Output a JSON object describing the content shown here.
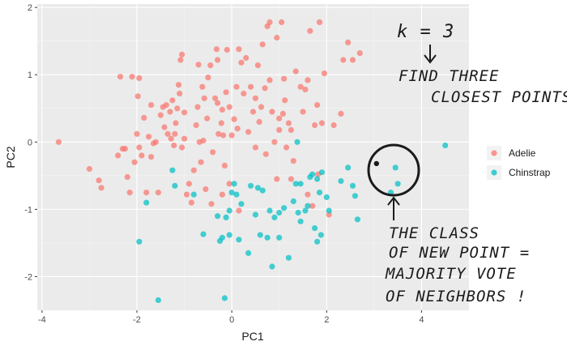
{
  "colors": {
    "panel": "#EBEBEB",
    "grid_major": "#FFFFFF",
    "grid_minor": "#F5F5F5",
    "adelie": "#F8766D",
    "chinstrap": "#00BFC4",
    "ink": "#1B1B1B"
  },
  "chart_data": {
    "type": "scatter",
    "xlabel": "PC1",
    "ylabel": "PC2",
    "xlim": [
      -4.1,
      5.0
    ],
    "ylim": [
      -2.5,
      2.05
    ],
    "x_ticks": [
      -4,
      -2,
      0,
      2,
      4
    ],
    "y_ticks": [
      -2,
      -1,
      0,
      1,
      2
    ],
    "x_tick_labels": [
      "-4",
      "-2",
      "0",
      "2",
      "4"
    ],
    "y_tick_labels": [
      "-2",
      "-1",
      "0",
      "1",
      "2"
    ],
    "grid": true,
    "legend": {
      "placement": "right"
    },
    "series": [
      {
        "name": "Adelie",
        "color": "#F8766D",
        "points": [
          [
            -3.65,
            0.0
          ],
          [
            -3.0,
            -0.4
          ],
          [
            -2.8,
            -0.57
          ],
          [
            -2.75,
            -0.68
          ],
          [
            -2.4,
            -0.2
          ],
          [
            -2.35,
            0.97
          ],
          [
            -2.3,
            -0.1
          ],
          [
            -2.25,
            -0.1
          ],
          [
            -2.2,
            -0.52
          ],
          [
            -2.15,
            -0.75
          ],
          [
            -2.1,
            0.97
          ],
          [
            -2.05,
            -0.3
          ],
          [
            -2.0,
            0.12
          ],
          [
            -1.98,
            0.68
          ],
          [
            -1.95,
            0.95
          ],
          [
            -1.95,
            -0.08
          ],
          [
            -1.9,
            -0.2
          ],
          [
            -1.85,
            0.36
          ],
          [
            -1.8,
            -0.75
          ],
          [
            -1.75,
            0.08
          ],
          [
            -1.7,
            -0.22
          ],
          [
            -1.65,
            -0.02
          ],
          [
            -1.6,
            0.0
          ],
          [
            -1.55,
            -0.75
          ],
          [
            -1.5,
            0.4
          ],
          [
            -1.45,
            0.52
          ],
          [
            -1.42,
            0.22
          ],
          [
            -1.38,
            0.55
          ],
          [
            -1.35,
            0.12
          ],
          [
            -1.3,
            0.45
          ],
          [
            -1.28,
            0.05
          ],
          [
            -1.25,
            0.62
          ],
          [
            -1.22,
            -0.05
          ],
          [
            -1.2,
            0.12
          ],
          [
            -1.18,
            0.28
          ],
          [
            -1.15,
            0.5
          ],
          [
            -1.12,
            0.85
          ],
          [
            -1.1,
            0.72
          ],
          [
            -1.08,
            1.22
          ],
          [
            -1.05,
            1.3
          ],
          [
            -1.05,
            -0.08
          ],
          [
            -1.0,
            0.05
          ],
          [
            -1.0,
            0.44
          ],
          [
            -0.95,
            -0.78
          ],
          [
            -0.85,
            -0.9
          ],
          [
            -0.8,
            -0.42
          ],
          [
            -0.75,
            0.25
          ],
          [
            -0.72,
            0.52
          ],
          [
            -0.7,
            1.15
          ],
          [
            -0.68,
            0.0
          ],
          [
            -0.65,
            -0.3
          ],
          [
            -0.62,
            0.82
          ],
          [
            -0.6,
            0.02
          ],
          [
            -0.58,
            0.65
          ],
          [
            -0.55,
            -0.7
          ],
          [
            -0.52,
            0.35
          ],
          [
            -0.5,
            0.96
          ],
          [
            -0.45,
            1.14
          ],
          [
            -0.43,
            -0.92
          ],
          [
            -0.4,
            -0.15
          ],
          [
            -0.35,
            0.65
          ],
          [
            -0.32,
            1.38
          ],
          [
            -0.3,
            1.22
          ],
          [
            -0.28,
            0.12
          ],
          [
            -0.22,
            0.28
          ],
          [
            -0.2,
            0.48
          ],
          [
            -0.18,
            0.1
          ],
          [
            -0.15,
            -0.35
          ],
          [
            -0.12,
            0.74
          ],
          [
            -0.1,
            1.37
          ],
          [
            -0.05,
            0.52
          ],
          [
            0.0,
            0.1
          ],
          [
            0.05,
            0.34
          ],
          [
            0.1,
            0.82
          ],
          [
            0.12,
            0.2
          ],
          [
            0.15,
            1.38
          ],
          [
            0.2,
            1.18
          ],
          [
            0.25,
            0.72
          ],
          [
            0.3,
            1.25
          ],
          [
            0.35,
            0.15
          ],
          [
            0.4,
            0.82
          ],
          [
            0.45,
            0.45
          ],
          [
            0.5,
            0.65
          ],
          [
            0.55,
            1.14
          ],
          [
            0.58,
            0.3
          ],
          [
            0.62,
            0.52
          ],
          [
            0.65,
            1.45
          ],
          [
            0.7,
            0.8
          ],
          [
            0.72,
            -0.18
          ],
          [
            0.75,
            1.72
          ],
          [
            0.8,
            0.92
          ],
          [
            0.85,
            0.45
          ],
          [
            0.9,
            0.0
          ],
          [
            0.95,
            1.55
          ],
          [
            1.0,
            0.18
          ],
          [
            1.0,
            0.35
          ],
          [
            1.05,
            1.78
          ],
          [
            1.08,
            0.42
          ],
          [
            1.1,
            0.94
          ],
          [
            1.12,
            0.62
          ],
          [
            1.15,
            -0.08
          ],
          [
            1.2,
            0.28
          ],
          [
            1.25,
            0.18
          ],
          [
            1.3,
            -0.28
          ],
          [
            1.35,
            1.05
          ],
          [
            1.45,
            0.82
          ],
          [
            1.5,
            0.45
          ],
          [
            1.55,
            0.78
          ],
          [
            1.6,
            0.92
          ],
          [
            1.65,
            1.65
          ],
          [
            1.7,
            -0.95
          ],
          [
            1.75,
            0.25
          ],
          [
            1.8,
            0.55
          ],
          [
            1.82,
            -0.48
          ],
          [
            1.85,
            1.78
          ],
          [
            1.9,
            0.28
          ],
          [
            1.95,
            1.02
          ],
          [
            2.05,
            -1.08
          ],
          [
            2.15,
            0.25
          ],
          [
            2.3,
            0.42
          ],
          [
            2.35,
            1.22
          ],
          [
            2.45,
            1.48
          ],
          [
            2.55,
            1.22
          ],
          [
            2.7,
            1.32
          ],
          [
            1.6,
            -0.78
          ],
          [
            0.95,
            -0.55
          ],
          [
            0.5,
            -0.08
          ],
          [
            -0.2,
            -0.78
          ],
          [
            -0.3,
            0.58
          ],
          [
            -0.9,
            -0.62
          ],
          [
            -1.7,
            0.55
          ],
          [
            0.15,
            -1.02
          ],
          [
            -0.05,
            -0.62
          ],
          [
            1.25,
            -0.55
          ],
          [
            0.8,
            1.78
          ]
        ]
      },
      {
        "name": "Chinstrap",
        "color": "#00BFC4",
        "points": [
          [
            -1.95,
            -1.48
          ],
          [
            -1.8,
            -0.9
          ],
          [
            -1.55,
            -2.35
          ],
          [
            -1.25,
            -0.42
          ],
          [
            -1.2,
            -0.65
          ],
          [
            -0.6,
            -1.37
          ],
          [
            -0.8,
            -0.78
          ],
          [
            -0.25,
            -1.47
          ],
          [
            -0.2,
            -1.42
          ],
          [
            -0.15,
            -2.32
          ],
          [
            -0.12,
            -1.12
          ],
          [
            -0.05,
            -1.02
          ],
          [
            -0.05,
            -1.38
          ],
          [
            0.05,
            -0.62
          ],
          [
            0.1,
            -0.78
          ],
          [
            0.15,
            -1.45
          ],
          [
            0.2,
            -0.92
          ],
          [
            0.35,
            -1.65
          ],
          [
            0.4,
            -0.65
          ],
          [
            0.5,
            -1.08
          ],
          [
            0.6,
            -1.38
          ],
          [
            0.65,
            -0.72
          ],
          [
            0.75,
            -1.42
          ],
          [
            0.8,
            -1.02
          ],
          [
            0.85,
            -1.85
          ],
          [
            0.9,
            -1.12
          ],
          [
            1.0,
            -1.42
          ],
          [
            1.1,
            -0.98
          ],
          [
            1.2,
            -1.72
          ],
          [
            1.3,
            -0.88
          ],
          [
            1.35,
            -0.62
          ],
          [
            1.38,
            0.0
          ],
          [
            1.4,
            -1.05
          ],
          [
            1.45,
            -1.18
          ],
          [
            1.55,
            -1.02
          ],
          [
            1.6,
            -0.95
          ],
          [
            1.65,
            -0.52
          ],
          [
            1.7,
            -0.48
          ],
          [
            1.75,
            -1.28
          ],
          [
            1.8,
            -0.55
          ],
          [
            1.85,
            -0.75
          ],
          [
            1.88,
            -1.38
          ],
          [
            1.9,
            -0.45
          ],
          [
            2.0,
            -0.82
          ],
          [
            2.05,
            -1.02
          ],
          [
            2.3,
            -0.58
          ],
          [
            2.45,
            -0.38
          ],
          [
            2.55,
            -0.65
          ],
          [
            2.6,
            -0.8
          ],
          [
            2.65,
            -1.15
          ],
          [
            3.35,
            -0.75
          ],
          [
            3.45,
            -0.38
          ],
          [
            3.5,
            -0.62
          ],
          [
            4.5,
            -0.05
          ],
          [
            0.0,
            -0.75
          ],
          [
            1.0,
            -1.05
          ],
          [
            -0.3,
            -1.1
          ],
          [
            1.8,
            -1.48
          ],
          [
            0.55,
            -0.68
          ],
          [
            1.45,
            -0.62
          ]
        ]
      }
    ],
    "new_point": [
      3.05,
      -0.32
    ]
  },
  "annotations": {
    "k_label": "k = 3",
    "find_line1": "FIND THREE",
    "find_line2": "CLOSEST POINTS",
    "class_line1": "THE CLASS",
    "class_line2": "OF NEW POINT =",
    "class_line3": "MAJORITY VOTE",
    "class_line4": "OF NEIGHBORS !"
  }
}
